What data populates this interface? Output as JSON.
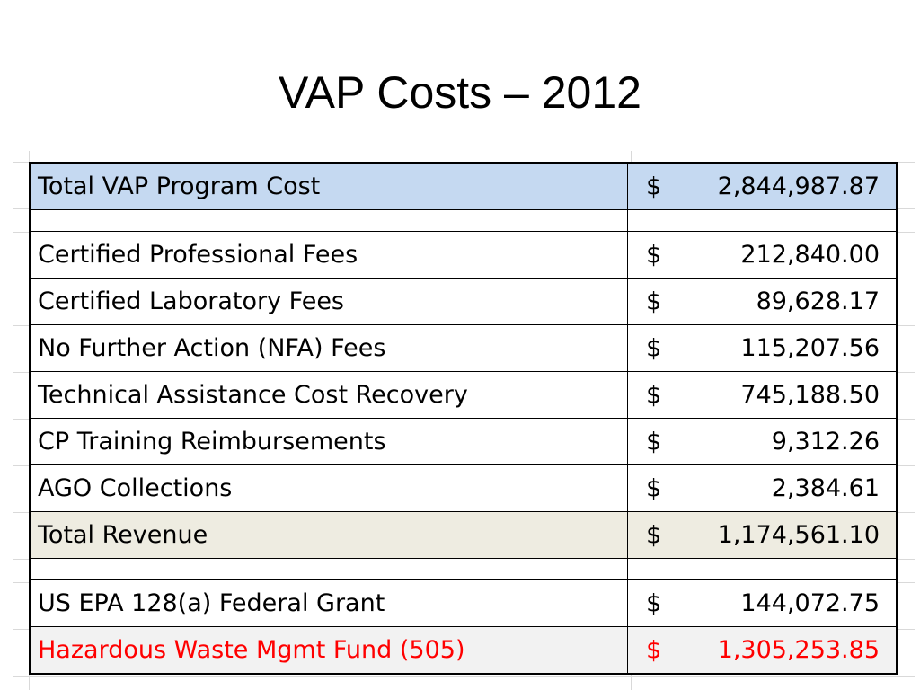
{
  "title": "VAP Costs – 2012",
  "colors": {
    "total_cost_fill": "#c5d9f1",
    "total_revenue_fill": "#eeece1",
    "highlight_text": "#ff0000"
  },
  "table": {
    "currency_symbol": "$",
    "rows": [
      {
        "label": "Total VAP Program Cost",
        "amount": "2,844,987.87"
      },
      {
        "label": "",
        "amount": ""
      },
      {
        "label": "Certified Professional Fees",
        "amount": "212,840.00"
      },
      {
        "label": "Certified Laboratory Fees",
        "amount": "89,628.17"
      },
      {
        "label": "No Further Action (NFA) Fees",
        "amount": "115,207.56"
      },
      {
        "label": "Technical Assistance Cost Recovery",
        "amount": "745,188.50"
      },
      {
        "label": "CP Training Reimbursements",
        "amount": "9,312.26"
      },
      {
        "label": "AGO Collections",
        "amount": "2,384.61"
      },
      {
        "label": "Total Revenue",
        "amount": "1,174,561.10"
      },
      {
        "label": "",
        "amount": ""
      },
      {
        "label": "US EPA 128(a) Federal Grant",
        "amount": "144,072.75"
      },
      {
        "label": "Hazardous Waste Mgmt Fund (505)",
        "amount": "1,305,253.85"
      }
    ]
  }
}
